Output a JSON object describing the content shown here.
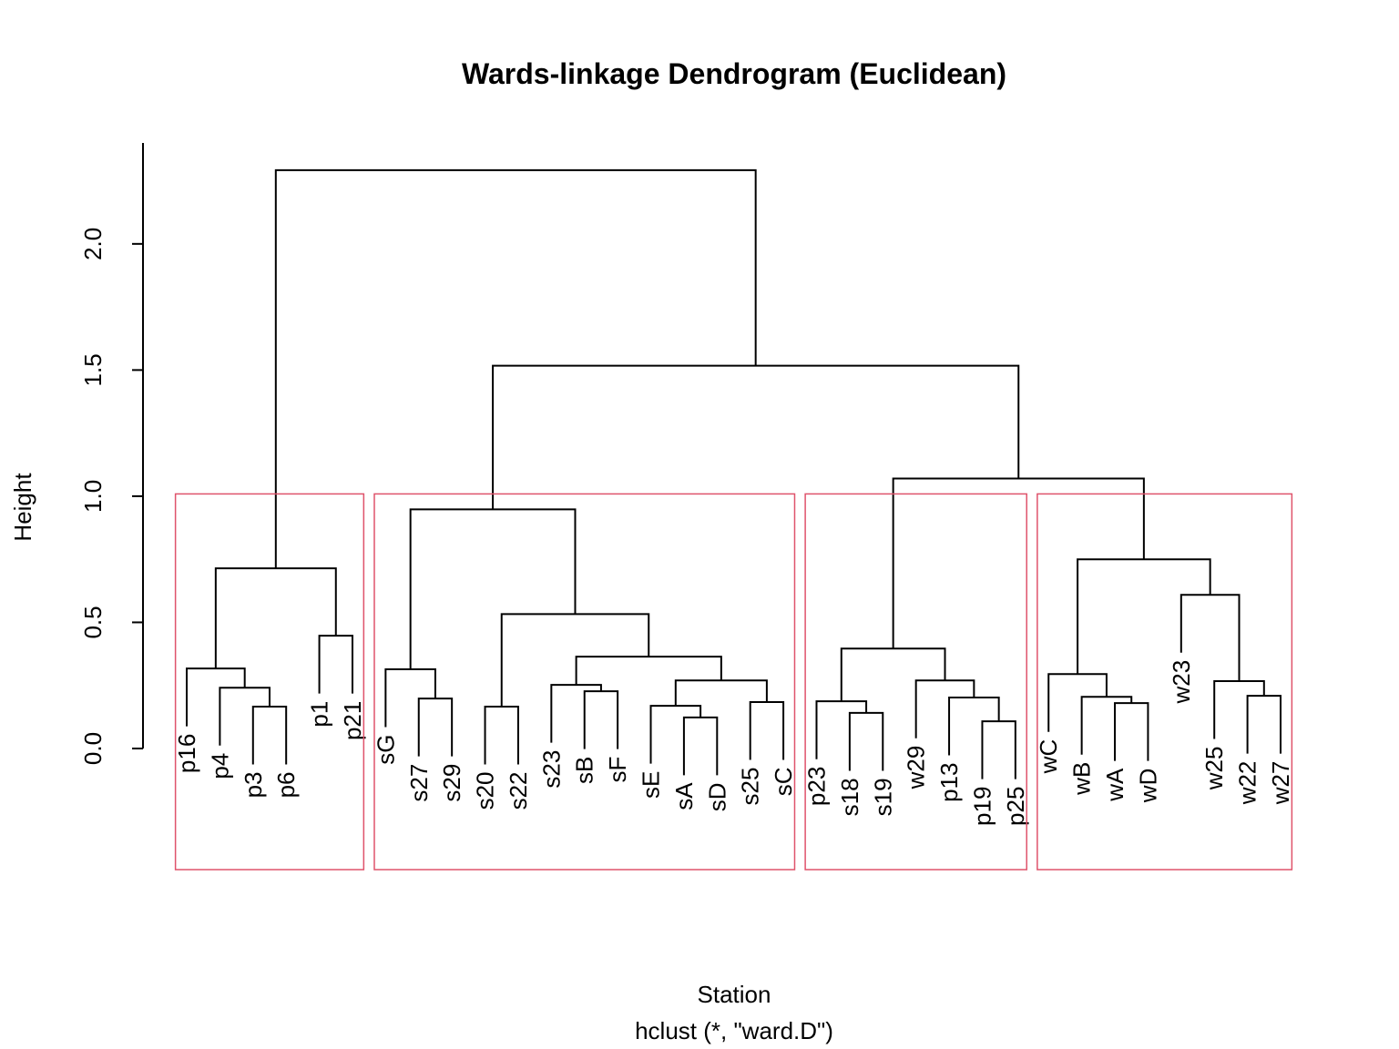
{
  "chart_data": {
    "type": "dendrogram",
    "title": "Wards-linkage Dendrogram (Euclidean)",
    "x_label": "Station",
    "subtitle": "hclust (*, \"ward.D\")",
    "y_label": "Height",
    "ylim": [
      0,
      2.4
    ],
    "yticks": [
      {
        "value": 0,
        "label": "0.0"
      },
      0.5,
      {
        "value": 1,
        "label": "1.0"
      },
      1.5,
      {
        "value": 2,
        "label": "2.0"
      }
    ],
    "color": "#000000",
    "cluster_boxes": {
      "k": 4,
      "color": "#DF536B"
    },
    "tree": {
      "height": 2.292,
      "children": [
        {
          "height": 0.714,
          "children": [
            {
              "height": 0.317,
              "children": [
                {
                  "label": "p16"
                },
                {
                  "height": 0.241,
                  "children": [
                    {
                      "label": "p4"
                    },
                    {
                      "height": 0.166,
                      "children": [
                        {
                          "label": "p3"
                        },
                        {
                          "label": "p6"
                        }
                      ]
                    }
                  ]
                }
              ]
            },
            {
              "height": 0.447,
              "children": [
                {
                  "label": "p1"
                },
                {
                  "label": "p21"
                }
              ]
            }
          ]
        },
        {
          "height": 1.517,
          "children": [
            {
              "height": 0.948,
              "children": [
                {
                  "height": 0.314,
                  "children": [
                    {
                      "label": "sG"
                    },
                    {
                      "height": 0.198,
                      "children": [
                        {
                          "label": "s27"
                        },
                        {
                          "label": "s29"
                        }
                      ]
                    }
                  ]
                },
                {
                  "height": 0.533,
                  "children": [
                    {
                      "height": 0.166,
                      "children": [
                        {
                          "label": "s20"
                        },
                        {
                          "label": "s22"
                        }
                      ]
                    },
                    {
                      "height": 0.364,
                      "children": [
                        {
                          "height": 0.252,
                          "children": [
                            {
                              "label": "s23"
                            },
                            {
                              "height": 0.227,
                              "children": [
                                {
                                  "label": "sB"
                                },
                                {
                                  "label": "sF"
                                }
                              ]
                            }
                          ]
                        },
                        {
                          "height": 0.27,
                          "children": [
                            {
                              "height": 0.169,
                              "children": [
                                {
                                  "label": "sE"
                                },
                                {
                                  "height": 0.123,
                                  "children": [
                                    {
                                      "label": "sA"
                                    },
                                    {
                                      "label": "sD"
                                    }
                                  ]
                                }
                              ]
                            },
                            {
                              "height": 0.184,
                              "children": [
                                {
                                  "label": "s25"
                                },
                                {
                                  "label": "sC"
                                }
                              ]
                            }
                          ]
                        }
                      ]
                    }
                  ]
                }
              ]
            },
            {
              "height": 1.07,
              "children": [
                {
                  "height": 0.396,
                  "children": [
                    {
                      "height": 0.187,
                      "children": [
                        {
                          "label": "p23"
                        },
                        {
                          "height": 0.141,
                          "children": [
                            {
                              "label": "s18"
                            },
                            {
                              "label": "s19"
                            }
                          ]
                        }
                      ]
                    },
                    {
                      "height": 0.27,
                      "children": [
                        {
                          "label": "w29"
                        },
                        {
                          "height": 0.202,
                          "children": [
                            {
                              "label": "p13"
                            },
                            {
                              "height": 0.108,
                              "children": [
                                {
                                  "label": "p19"
                                },
                                {
                                  "label": "p25"
                                }
                              ]
                            }
                          ]
                        }
                      ]
                    }
                  ]
                },
                {
                  "height": 0.75,
                  "children": [
                    {
                      "height": 0.295,
                      "children": [
                        {
                          "label": "wC"
                        },
                        {
                          "height": 0.205,
                          "children": [
                            {
                              "label": "wB"
                            },
                            {
                              "height": 0.18,
                              "children": [
                                {
                                  "label": "wA"
                                },
                                {
                                  "label": "wD"
                                }
                              ]
                            }
                          ]
                        }
                      ]
                    },
                    {
                      "height": 0.609,
                      "children": [
                        {
                          "label": "w23"
                        },
                        {
                          "height": 0.267,
                          "children": [
                            {
                              "label": "w25"
                            },
                            {
                              "height": 0.209,
                              "children": [
                                {
                                  "label": "w22"
                                },
                                {
                                  "label": "w27"
                                }
                              ]
                            }
                          ]
                        }
                      ]
                    }
                  ]
                }
              ]
            }
          ]
        }
      ]
    }
  }
}
